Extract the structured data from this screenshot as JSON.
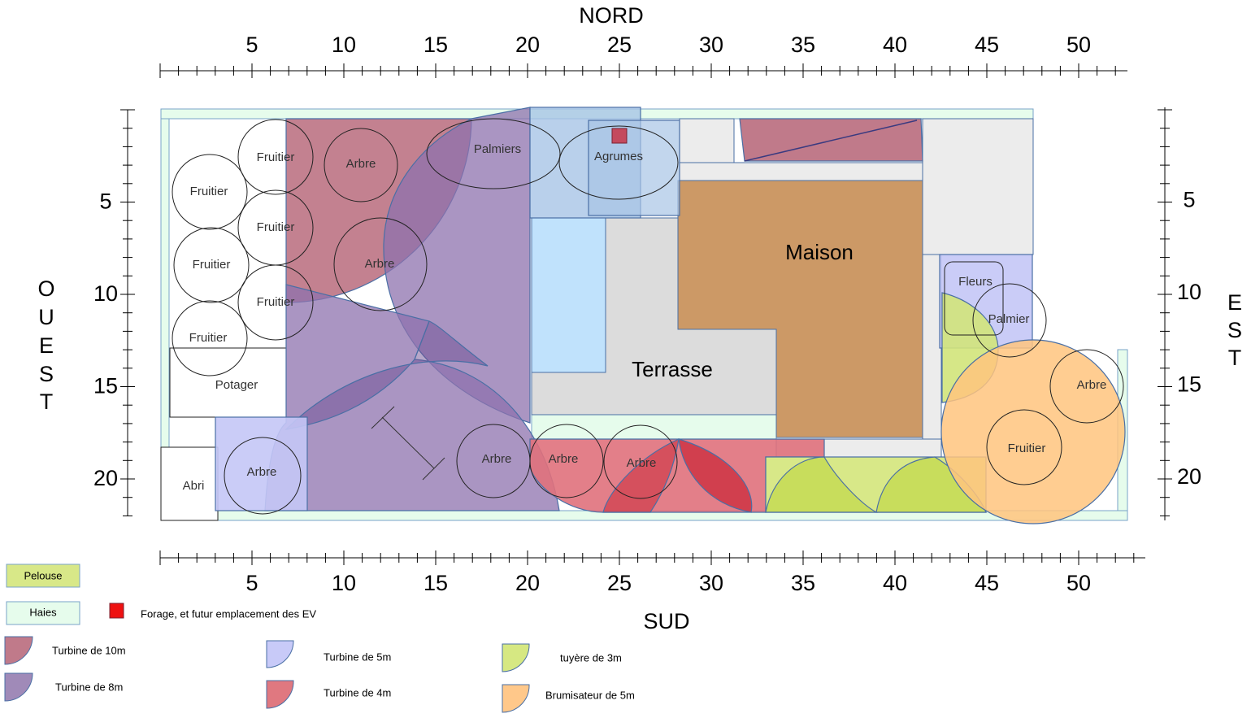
{
  "compass": {
    "north": "NORD",
    "south": "SUD",
    "west": [
      "O",
      "U",
      "E",
      "S",
      "T"
    ],
    "east": [
      "E",
      "S",
      "T"
    ]
  },
  "scale": {
    "horizontal_labels": [
      "5",
      "10",
      "15",
      "20",
      "25",
      "30",
      "35",
      "40",
      "45",
      "50"
    ],
    "vertical_labels": [
      "5",
      "10",
      "15",
      "20"
    ]
  },
  "zones": {
    "fruitier": "Fruitier",
    "arbre": "Arbre",
    "palmiers": "Palmiers",
    "agrumes": "Agrumes",
    "maison": "Maison",
    "terrasse": "Terrasse",
    "potager": "Potager",
    "abri": "Abri",
    "fleurs": "Fleurs",
    "palmier": "Palmier"
  },
  "legend": {
    "pelouse": "Pelouse",
    "haies": "Haies",
    "forage": "Forage, et futur emplacement des EV",
    "turbine10": "Turbine de 10m",
    "turbine8": "Turbine de 8m",
    "turbine5": "Turbine de 5m",
    "turbine4": "Turbine de 4m",
    "tuyere3": "tuyère de 3m",
    "brumisateur5": "Brumisateur de 5m"
  },
  "colors": {
    "turbine10": "#c07a8a",
    "turbine8": "#8e72ad",
    "turbine5": "#c4c6f6",
    "turbine4": "#e0717c",
    "tuyere3": "#d2e47a",
    "brumisateur5": "#ffc47e",
    "haies": "#e6fcec",
    "pelouse": "#d8e888",
    "maison": "#cc9966",
    "forage": "#ee1111"
  }
}
